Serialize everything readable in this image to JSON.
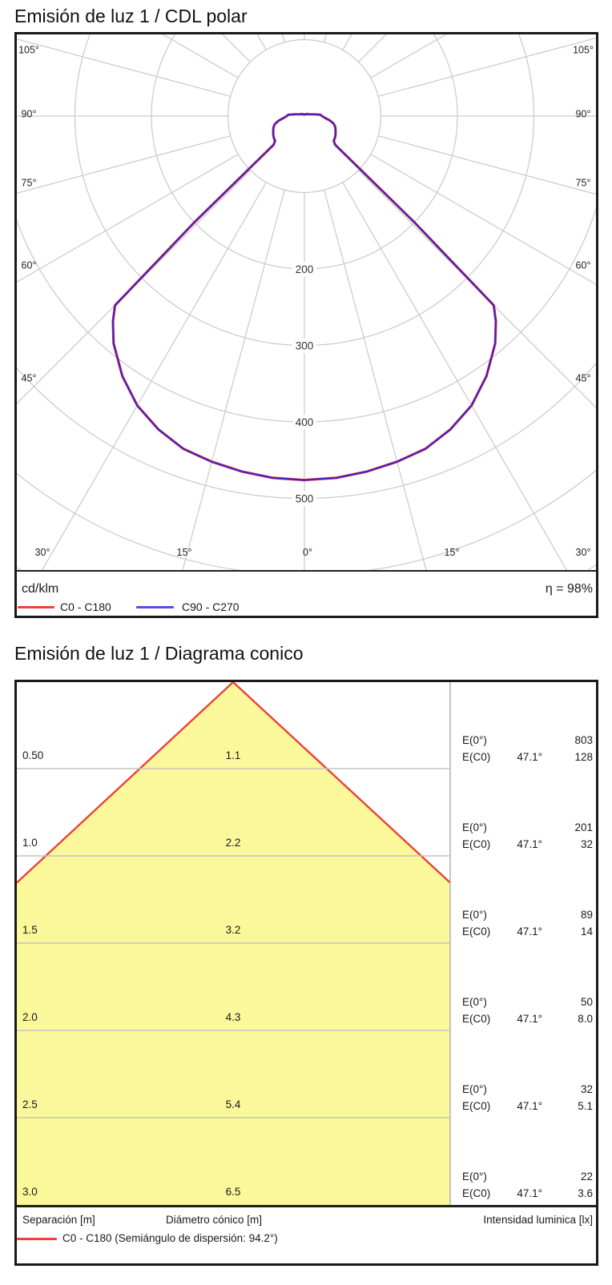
{
  "chart_data": [
    {
      "type": "polar-line",
      "title": "Emisión de luz 1 / CDL polar",
      "unit": "cd/klm",
      "efficiency": "η = 98%",
      "ring_step_cd_klm": 100,
      "ring_labels": [
        200,
        300,
        400,
        500
      ],
      "angle_labels_side": [
        "105°",
        "90°",
        "75°",
        "60°",
        "45°"
      ],
      "angle_labels_bottom": [
        "30°",
        "15°",
        "0°",
        "15°",
        "30°"
      ],
      "grid_color": "#c9c9c9",
      "series": [
        {
          "name": "C0 - C180",
          "color": "#ee4038",
          "gamma_deg": [
            0,
            5,
            10,
            15,
            20,
            25,
            30,
            35,
            40,
            43,
            45,
            46,
            47,
            50,
            55,
            60,
            65,
            70,
            75,
            80,
            85,
            90,
            95,
            100,
            110,
            130,
            180
          ],
          "values_cd_klm": [
            476,
            475,
            472,
            468,
            463,
            452,
            437,
            415,
            388,
            367,
            350,
            200,
            55,
            50,
            49,
            47,
            45,
            43,
            40,
            34,
            27,
            23,
            21,
            13,
            7,
            4,
            2
          ]
        },
        {
          "name": "C90 - C270",
          "color": "#3a20cc",
          "gamma_deg": [
            0,
            5,
            10,
            15,
            20,
            25,
            30,
            35,
            40,
            43,
            45,
            46,
            47,
            50,
            55,
            60,
            65,
            70,
            75,
            80,
            85,
            90,
            95,
            100,
            110,
            130,
            180
          ],
          "values_cd_klm": [
            476,
            475,
            472,
            468,
            463,
            452,
            437,
            415,
            388,
            367,
            350,
            200,
            55,
            50,
            49,
            47,
            45,
            43,
            40,
            34,
            27,
            23,
            21,
            13,
            7,
            4,
            2
          ]
        }
      ],
      "legend_swatch_blue": "#5552e0"
    },
    {
      "type": "cone-diagram",
      "title": "Emisión de luz 1 / Diagrama conico",
      "legend": "C0 - C180 (Semiángulo de dispersión: 94.2°)",
      "beam_half_angle": "47.1°",
      "beam_color": "#fbf89b",
      "edge_color": "#ee4038",
      "col_separation": "Separación [m]",
      "col_diameter": "Diámetro cónico [m]",
      "col_intensity": "Intensidad luminica [lx]",
      "e_labels": {
        "direct": "E(0°)",
        "cone": "E(C0)"
      },
      "rows": [
        {
          "separation": "0.50",
          "diameter": "1.1",
          "e0": "803",
          "angle": "47.1°",
          "ec0": "128"
        },
        {
          "separation": "1.0",
          "diameter": "2.2",
          "e0": "201",
          "angle": "47.1°",
          "ec0": "32"
        },
        {
          "separation": "1.5",
          "diameter": "3.2",
          "e0": "89",
          "angle": "47.1°",
          "ec0": "14"
        },
        {
          "separation": "2.0",
          "diameter": "4.3",
          "e0": "50",
          "angle": "47.1°",
          "ec0": "8.0"
        },
        {
          "separation": "2.5",
          "diameter": "5.4",
          "e0": "32",
          "angle": "47.1°",
          "ec0": "5.1"
        },
        {
          "separation": "3.0",
          "diameter": "6.5",
          "e0": "22",
          "angle": "47.1°",
          "ec0": "3.6"
        }
      ]
    }
  ]
}
